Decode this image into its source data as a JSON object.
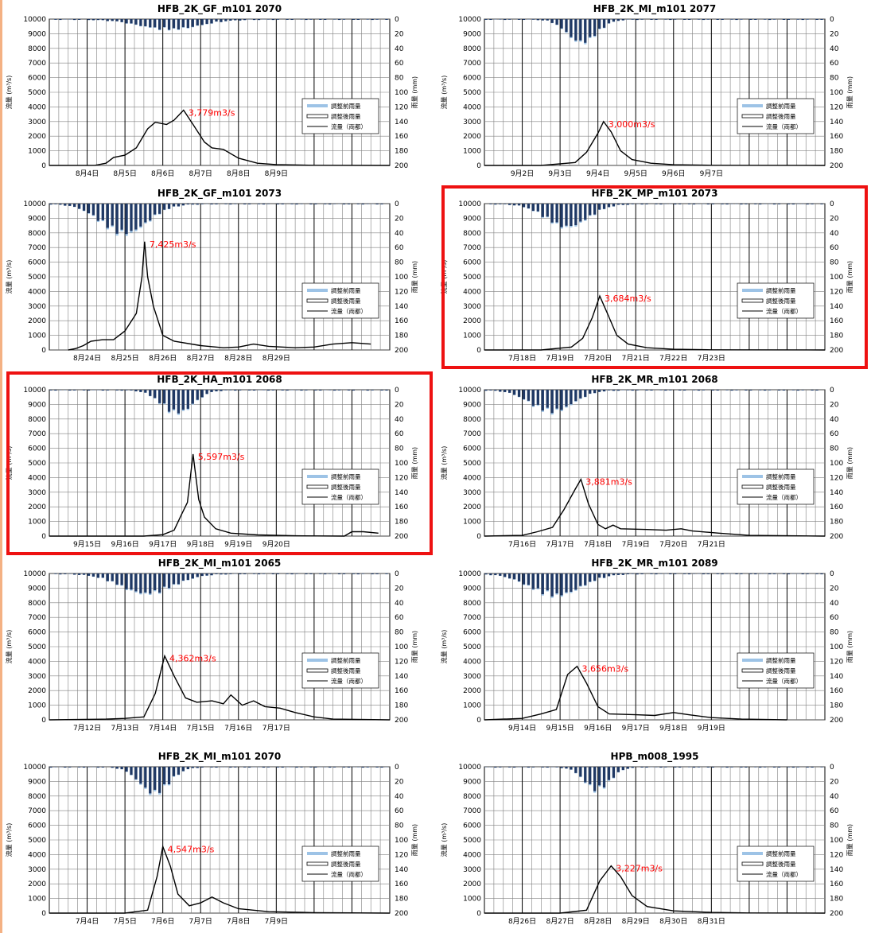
{
  "legend": {
    "before": "調整前雨量",
    "after": "調整後雨量",
    "flow": "流量（両都）"
  },
  "ylabel_flow": "流量 (m³/s)",
  "ylabel_rain": "雨量 (mm)",
  "flow_ticks": [
    "0",
    "1000",
    "2000",
    "3000",
    "4000",
    "5000",
    "6000",
    "7000",
    "8000",
    "9000",
    "10000"
  ],
  "rain_ticks": [
    "0",
    "20",
    "40",
    "60",
    "80",
    "100",
    "120",
    "140",
    "160",
    "180",
    "200"
  ],
  "chart_data": [
    {
      "type": "line",
      "title": "HFB_2K_GF_m101 2070",
      "highlight": false,
      "xticklabels": [
        "8月4日",
        "8月5日",
        "8月6日",
        "8月7日",
        "8月8日",
        "8月9日"
      ],
      "ylim": [
        0,
        10000
      ],
      "y2lim": [
        0,
        200
      ],
      "peak_label": "3,779m3/s",
      "flow": [
        [
          0,
          0
        ],
        [
          1.2,
          5
        ],
        [
          1.5,
          150
        ],
        [
          1.7,
          550
        ],
        [
          2.0,
          700
        ],
        [
          2.3,
          1200
        ],
        [
          2.6,
          2500
        ],
        [
          2.8,
          2950
        ],
        [
          3.1,
          2800
        ],
        [
          3.3,
          3100
        ],
        [
          3.55,
          3779
        ],
        [
          3.8,
          2800
        ],
        [
          4.1,
          1600
        ],
        [
          4.3,
          1200
        ],
        [
          4.6,
          1100
        ],
        [
          5,
          500
        ],
        [
          5.5,
          150
        ],
        [
          6,
          60
        ],
        [
          7,
          10
        ],
        [
          9,
          0
        ]
      ],
      "rain_center": 3.2,
      "rain_width": 2.8,
      "rain_peak": 15
    },
    {
      "type": "line",
      "title": "HFB_2K_MI_m101 2077",
      "highlight": false,
      "xticklabels": [
        "9月2日",
        "9月3日",
        "9月4日",
        "9月5日",
        "9月6日",
        "9月7日"
      ],
      "ylim": [
        0,
        10000
      ],
      "y2lim": [
        0,
        200
      ],
      "peak_label": "3,000m3/s",
      "flow": [
        [
          0,
          0
        ],
        [
          1.5,
          0
        ],
        [
          2.4,
          200
        ],
        [
          2.7,
          900
        ],
        [
          3.0,
          2200
        ],
        [
          3.15,
          3000
        ],
        [
          3.35,
          2300
        ],
        [
          3.6,
          1000
        ],
        [
          3.9,
          400
        ],
        [
          4.4,
          150
        ],
        [
          5,
          50
        ],
        [
          6,
          10
        ],
        [
          9,
          0
        ]
      ],
      "rain_center": 2.6,
      "rain_width": 1.4,
      "rain_peak": 35
    },
    {
      "type": "line",
      "title": "HFB_2K_GF_m101 2073",
      "highlight": false,
      "xticklabels": [
        "8月24日",
        "8月25日",
        "8月26日",
        "8月27日",
        "8月28日",
        "8月29日"
      ],
      "ylim": [
        0,
        10000
      ],
      "y2lim": [
        0,
        200
      ],
      "peak_label": "7,425m3/s",
      "flow": [
        [
          0.5,
          0
        ],
        [
          0.7,
          100
        ],
        [
          0.9,
          300
        ],
        [
          1.1,
          600
        ],
        [
          1.4,
          700
        ],
        [
          1.7,
          700
        ],
        [
          2.0,
          1300
        ],
        [
          2.3,
          2500
        ],
        [
          2.45,
          5000
        ],
        [
          2.52,
          7400
        ],
        [
          2.6,
          5000
        ],
        [
          2.75,
          3000
        ],
        [
          3.0,
          1000
        ],
        [
          3.3,
          600
        ],
        [
          4.0,
          300
        ],
        [
          4.6,
          150
        ],
        [
          5.0,
          200
        ],
        [
          5.4,
          400
        ],
        [
          5.8,
          250
        ],
        [
          6.5,
          150
        ],
        [
          7.0,
          200
        ],
        [
          7.5,
          400
        ],
        [
          8.0,
          500
        ],
        [
          8.5,
          400
        ]
      ],
      "rain_center": 2.0,
      "rain_width": 2.2,
      "rain_peak": 45
    },
    {
      "type": "line",
      "title": "HFB_2K_MP_m101 2073",
      "highlight": true,
      "xticklabels": [
        "7月18日",
        "7月19日",
        "7月20日",
        "7月21日",
        "7月22日",
        "7月23日"
      ],
      "ylim": [
        0,
        10000
      ],
      "y2lim": [
        0,
        200
      ],
      "peak_label": "3,684m3/s",
      "flow": [
        [
          0,
          0
        ],
        [
          1.5,
          0
        ],
        [
          2.3,
          200
        ],
        [
          2.6,
          800
        ],
        [
          2.85,
          2200
        ],
        [
          3.05,
          3684
        ],
        [
          3.25,
          2500
        ],
        [
          3.5,
          1000
        ],
        [
          3.8,
          400
        ],
        [
          4.3,
          150
        ],
        [
          5,
          50
        ],
        [
          6,
          10
        ],
        [
          9,
          0
        ]
      ],
      "rain_center": 2.2,
      "rain_width": 2.0,
      "rain_peak": 35
    },
    {
      "type": "line",
      "title": "HFB_2K_HA_m101 2068",
      "highlight": true,
      "xticklabels": [
        "9月15日",
        "9月16日",
        "9月17日",
        "9月18日",
        "9月19日",
        "9月20日"
      ],
      "ylim": [
        0,
        10000
      ],
      "y2lim": [
        0,
        200
      ],
      "peak_label": "5,597m3/s",
      "flow": [
        [
          0,
          0
        ],
        [
          2.5,
          0
        ],
        [
          3.0,
          100
        ],
        [
          3.3,
          400
        ],
        [
          3.5,
          1500
        ],
        [
          3.65,
          2300
        ],
        [
          3.8,
          5597
        ],
        [
          3.95,
          2500
        ],
        [
          4.1,
          1300
        ],
        [
          4.4,
          500
        ],
        [
          4.8,
          200
        ],
        [
          5.5,
          80
        ],
        [
          6.5,
          20
        ],
        [
          7.8,
          0
        ],
        [
          8.0,
          300
        ],
        [
          8.3,
          300
        ],
        [
          8.7,
          200
        ]
      ],
      "rain_center": 3.4,
      "rain_width": 1.5,
      "rain_peak": 35
    },
    {
      "type": "line",
      "title": "HFB_2K_MR_m101 2068",
      "highlight": false,
      "xticklabels": [
        "7月16日",
        "7月17日",
        "7月18日",
        "7月19日",
        "7月20日",
        "7月21日"
      ],
      "ylim": [
        0,
        10000
      ],
      "y2lim": [
        0,
        200
      ],
      "peak_label": "3,881m3/s",
      "flow": [
        [
          0,
          0
        ],
        [
          1.0,
          50
        ],
        [
          1.4,
          300
        ],
        [
          1.8,
          600
        ],
        [
          2.1,
          1800
        ],
        [
          2.4,
          3200
        ],
        [
          2.55,
          3881
        ],
        [
          2.75,
          2200
        ],
        [
          3.0,
          800
        ],
        [
          3.2,
          500
        ],
        [
          3.4,
          750
        ],
        [
          3.6,
          500
        ],
        [
          4.3,
          450
        ],
        [
          4.8,
          400
        ],
        [
          5.2,
          500
        ],
        [
          5.5,
          350
        ],
        [
          6.2,
          200
        ],
        [
          7,
          50
        ],
        [
          9,
          0
        ]
      ],
      "rain_center": 1.8,
      "rain_width": 2.0,
      "rain_peak": 33
    },
    {
      "type": "line",
      "title": "HFB_2K_MI_m101 2065",
      "highlight": false,
      "xticklabels": [
        "7月12日",
        "7月13日",
        "7月14日",
        "7月15日",
        "7月16日",
        "7月17日"
      ],
      "ylim": [
        0,
        10000
      ],
      "y2lim": [
        0,
        200
      ],
      "peak_label": "4,362m3/s",
      "flow": [
        [
          0,
          0
        ],
        [
          1.5,
          50
        ],
        [
          2.0,
          100
        ],
        [
          2.5,
          200
        ],
        [
          2.8,
          1800
        ],
        [
          3.05,
          4362
        ],
        [
          3.3,
          3000
        ],
        [
          3.6,
          1500
        ],
        [
          3.9,
          1200
        ],
        [
          4.3,
          1300
        ],
        [
          4.6,
          1100
        ],
        [
          4.8,
          1700
        ],
        [
          5.1,
          1000
        ],
        [
          5.4,
          1300
        ],
        [
          5.7,
          900
        ],
        [
          6.1,
          800
        ],
        [
          6.5,
          500
        ],
        [
          7,
          200
        ],
        [
          7.5,
          50
        ],
        [
          9,
          0
        ]
      ],
      "rain_center": 2.6,
      "rain_width": 2.5,
      "rain_peak": 30
    },
    {
      "type": "line",
      "title": "HFB_2K_MR_m101 2089",
      "highlight": false,
      "xticklabels": [
        "9月14日",
        "9月15日",
        "9月16日",
        "9月17日",
        "9月18日",
        "9月19日"
      ],
      "ylim": [
        0,
        10000
      ],
      "y2lim": [
        0,
        200
      ],
      "peak_label": "3,656m3/s",
      "flow": [
        [
          0,
          0
        ],
        [
          1.0,
          100
        ],
        [
          1.5,
          400
        ],
        [
          1.9,
          700
        ],
        [
          2.2,
          3100
        ],
        [
          2.45,
          3656
        ],
        [
          2.7,
          2500
        ],
        [
          3.0,
          900
        ],
        [
          3.3,
          400
        ],
        [
          4.0,
          350
        ],
        [
          4.5,
          300
        ],
        [
          5.0,
          500
        ],
        [
          5.4,
          350
        ],
        [
          6.0,
          150
        ],
        [
          6.8,
          50
        ],
        [
          8,
          0
        ]
      ],
      "rain_center": 1.9,
      "rain_width": 2.4,
      "rain_peak": 33
    },
    {
      "type": "line",
      "title": "HFB_2K_MI_m101 2070",
      "highlight": false,
      "xticklabels": [
        "7月4日",
        "7月5日",
        "7月6日",
        "7月7日",
        "7月8日",
        "7月9日"
      ],
      "ylim": [
        0,
        10000
      ],
      "y2lim": [
        0,
        200
      ],
      "peak_label": "4,547m3/s",
      "flow": [
        [
          0,
          0
        ],
        [
          2.0,
          0
        ],
        [
          2.6,
          200
        ],
        [
          2.85,
          2500
        ],
        [
          3.0,
          4547
        ],
        [
          3.2,
          3200
        ],
        [
          3.4,
          1300
        ],
        [
          3.7,
          500
        ],
        [
          4.0,
          700
        ],
        [
          4.3,
          1100
        ],
        [
          4.6,
          700
        ],
        [
          5.0,
          300
        ],
        [
          5.8,
          100
        ],
        [
          7,
          30
        ],
        [
          9,
          0
        ]
      ],
      "rain_center": 2.8,
      "rain_width": 1.4,
      "rain_peak": 40
    },
    {
      "type": "line",
      "title": "HPB_m008_1995",
      "highlight": false,
      "xticklabels": [
        "8月26日",
        "8月27日",
        "8月28日",
        "8月29日",
        "8月30日",
        "8月31日"
      ],
      "ylim": [
        0,
        10000
      ],
      "y2lim": [
        0,
        200
      ],
      "peak_label": "3,227m3/s",
      "flow": [
        [
          0,
          0
        ],
        [
          2.0,
          0
        ],
        [
          2.7,
          200
        ],
        [
          3.05,
          2200
        ],
        [
          3.35,
          3227
        ],
        [
          3.6,
          2500
        ],
        [
          3.9,
          1200
        ],
        [
          4.3,
          450
        ],
        [
          5.0,
          150
        ],
        [
          6,
          50
        ],
        [
          7,
          10
        ],
        [
          9,
          0
        ]
      ],
      "rain_center": 3.0,
      "rain_width": 1.2,
      "rain_peak": 35
    }
  ]
}
